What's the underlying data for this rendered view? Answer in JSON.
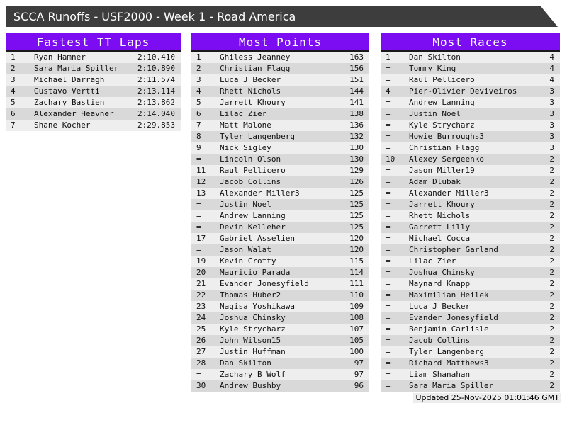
{
  "title": "SCCA Runoffs - USF2000 - Week 1 - Road America",
  "colors": {
    "accent": "#7c0df2",
    "titlebar": "#3d3d3d",
    "row_light": "#eeeeee",
    "row_dark": "#d9d9d9"
  },
  "footer": {
    "updated": "Updated 25-Nov-2025 01:01:46 GMT"
  },
  "boards": [
    {
      "title": "Fastest TT Laps",
      "rows": [
        {
          "rank": "1",
          "name": "Ryan Hamner",
          "value": "2:10.410"
        },
        {
          "rank": "2",
          "name": "Sara Maria Spiller",
          "value": "2:10.890"
        },
        {
          "rank": "3",
          "name": "Michael Darragh",
          "value": "2:11.574"
        },
        {
          "rank": "4",
          "name": "Gustavo Vertti",
          "value": "2:13.114"
        },
        {
          "rank": "5",
          "name": "Zachary Bastien",
          "value": "2:13.862"
        },
        {
          "rank": "6",
          "name": "Alexander Heavner",
          "value": "2:14.040"
        },
        {
          "rank": "7",
          "name": "Shane Kocher",
          "value": "2:29.853"
        }
      ]
    },
    {
      "title": "Most Points",
      "rows": [
        {
          "rank": "1",
          "name": "Ghiless Jeanney",
          "value": "163"
        },
        {
          "rank": "2",
          "name": "Christian Flagg",
          "value": "156"
        },
        {
          "rank": "3",
          "name": "Luca J Becker",
          "value": "151"
        },
        {
          "rank": "4",
          "name": "Rhett Nichols",
          "value": "144"
        },
        {
          "rank": "5",
          "name": "Jarrett Khoury",
          "value": "141"
        },
        {
          "rank": "6",
          "name": "Lilac Zier",
          "value": "138"
        },
        {
          "rank": "7",
          "name": "Matt Malone",
          "value": "136"
        },
        {
          "rank": "8",
          "name": "Tyler Langenberg",
          "value": "132"
        },
        {
          "rank": "9",
          "name": "Nick Sigley",
          "value": "130"
        },
        {
          "rank": "=",
          "name": "Lincoln Olson",
          "value": "130"
        },
        {
          "rank": "11",
          "name": "Raul Pellicero",
          "value": "129"
        },
        {
          "rank": "12",
          "name": "Jacob Collins",
          "value": "126"
        },
        {
          "rank": "13",
          "name": "Alexander Miller3",
          "value": "125"
        },
        {
          "rank": "=",
          "name": "Justin Noel",
          "value": "125"
        },
        {
          "rank": "=",
          "name": "Andrew Lanning",
          "value": "125"
        },
        {
          "rank": "=",
          "name": "Devin Kelleher",
          "value": "125"
        },
        {
          "rank": "17",
          "name": "Gabriel Asselien",
          "value": "120"
        },
        {
          "rank": "=",
          "name": "Jason Walat",
          "value": "120"
        },
        {
          "rank": "19",
          "name": "Kevin Crotty",
          "value": "115"
        },
        {
          "rank": "20",
          "name": "Mauricio Parada",
          "value": "114"
        },
        {
          "rank": "21",
          "name": "Evander Jonesyfield",
          "value": "111"
        },
        {
          "rank": "22",
          "name": "Thomas Huber2",
          "value": "110"
        },
        {
          "rank": "23",
          "name": "Nagisa Yoshikawa",
          "value": "109"
        },
        {
          "rank": "24",
          "name": "Joshua Chinsky",
          "value": "108"
        },
        {
          "rank": "25",
          "name": "Kyle Strycharz",
          "value": "107"
        },
        {
          "rank": "26",
          "name": "John Wilson15",
          "value": "105"
        },
        {
          "rank": "27",
          "name": "Justin Huffman",
          "value": "100"
        },
        {
          "rank": "28",
          "name": "Dan Skilton",
          "value": "97"
        },
        {
          "rank": "=",
          "name": "Zachary B Wolf",
          "value": "97"
        },
        {
          "rank": "30",
          "name": "Andrew Bushby",
          "value": "96"
        }
      ]
    },
    {
      "title": "Most Races",
      "rows": [
        {
          "rank": "1",
          "name": "Dan Skilton",
          "value": "4"
        },
        {
          "rank": "=",
          "name": "Tommy King",
          "value": "4"
        },
        {
          "rank": "=",
          "name": "Raul Pellicero",
          "value": "4"
        },
        {
          "rank": "4",
          "name": "Pier-Olivier Deviveiros",
          "value": "3"
        },
        {
          "rank": "=",
          "name": "Andrew Lanning",
          "value": "3"
        },
        {
          "rank": "=",
          "name": "Justin Noel",
          "value": "3"
        },
        {
          "rank": "=",
          "name": "Kyle Strycharz",
          "value": "3"
        },
        {
          "rank": "=",
          "name": "Howie Burroughs3",
          "value": "3"
        },
        {
          "rank": "=",
          "name": "Christian Flagg",
          "value": "3"
        },
        {
          "rank": "10",
          "name": "Alexey Sergeenko",
          "value": "2"
        },
        {
          "rank": "=",
          "name": "Jason Miller19",
          "value": "2"
        },
        {
          "rank": "=",
          "name": "Adam Dlubak",
          "value": "2"
        },
        {
          "rank": "=",
          "name": "Alexander Miller3",
          "value": "2"
        },
        {
          "rank": "=",
          "name": "Jarrett Khoury",
          "value": "2"
        },
        {
          "rank": "=",
          "name": "Rhett Nichols",
          "value": "2"
        },
        {
          "rank": "=",
          "name": "Garrett Lilly",
          "value": "2"
        },
        {
          "rank": "=",
          "name": "Michael Cocca",
          "value": "2"
        },
        {
          "rank": "=",
          "name": "Christopher Garland",
          "value": "2"
        },
        {
          "rank": "=",
          "name": "Lilac Zier",
          "value": "2"
        },
        {
          "rank": "=",
          "name": "Joshua Chinsky",
          "value": "2"
        },
        {
          "rank": "=",
          "name": "Maynard Knapp",
          "value": "2"
        },
        {
          "rank": "=",
          "name": "Maximilian Heilek",
          "value": "2"
        },
        {
          "rank": "=",
          "name": "Luca J Becker",
          "value": "2"
        },
        {
          "rank": "=",
          "name": "Evander Jonesyfield",
          "value": "2"
        },
        {
          "rank": "=",
          "name": "Benjamin Carlisle",
          "value": "2"
        },
        {
          "rank": "=",
          "name": "Jacob Collins",
          "value": "2"
        },
        {
          "rank": "=",
          "name": "Tyler Langenberg",
          "value": "2"
        },
        {
          "rank": "=",
          "name": "Richard Matthews3",
          "value": "2"
        },
        {
          "rank": "=",
          "name": "Liam Shanahan",
          "value": "2"
        },
        {
          "rank": "=",
          "name": "Sara Maria Spiller",
          "value": "2"
        }
      ]
    }
  ]
}
